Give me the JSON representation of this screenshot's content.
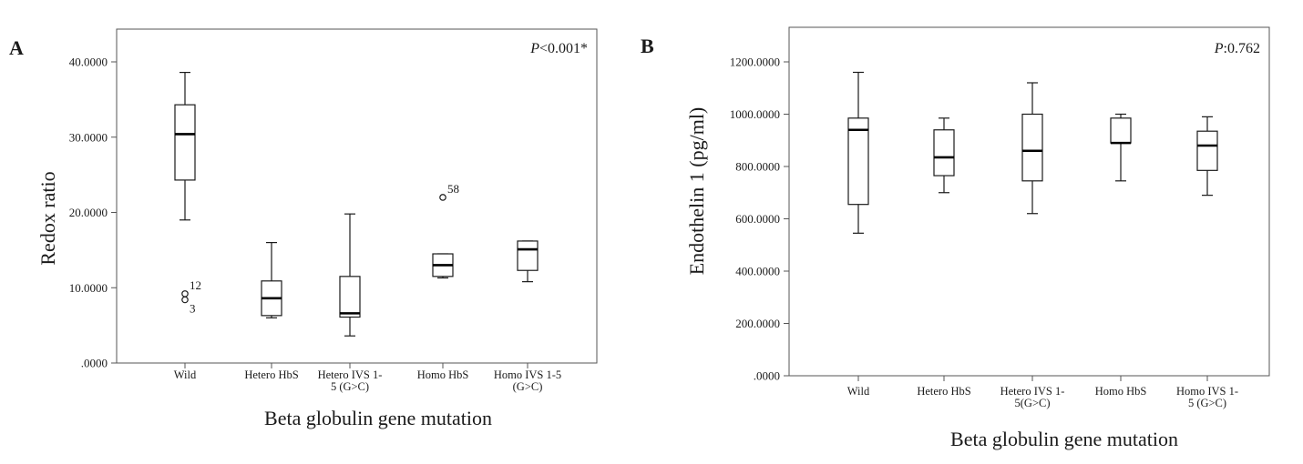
{
  "chart_data": [
    {
      "type": "boxplot",
      "panel_letter": "A",
      "p_value_prefix": "P",
      "p_value_text": "<0.001*",
      "xlabel": "Beta globulin gene mutation",
      "ylabel": "Redox ratio",
      "ylim": [
        0,
        40
      ],
      "yticks": [
        0,
        10,
        20,
        30,
        40
      ],
      "ytick_labels": [
        ".0000",
        "10.0000",
        "20.0000",
        "30.0000",
        "40.0000"
      ],
      "grid": false,
      "categories": [
        [
          "Wild"
        ],
        [
          "Hetero HbS"
        ],
        [
          "Hetero IVS 1-",
          "5 (G>C)"
        ],
        [
          "Homo HbS"
        ],
        [
          "Homo IVS 1-5",
          "(G>C)"
        ]
      ],
      "boxes": [
        {
          "min": 19.0,
          "q1": 24.3,
          "median": 30.4,
          "q3": 34.3,
          "max": 38.6
        },
        {
          "min": 6.0,
          "q1": 6.3,
          "median": 8.6,
          "q3": 10.9,
          "max": 16.0
        },
        {
          "min": 3.6,
          "q1": 6.1,
          "median": 6.6,
          "q3": 11.5,
          "max": 19.8
        },
        {
          "min": 11.3,
          "q1": 11.5,
          "median": 13.0,
          "q3": 14.5,
          "max": 14.5
        },
        {
          "min": 10.8,
          "q1": 12.3,
          "median": 15.1,
          "q3": 16.2,
          "max": 16.2
        }
      ],
      "outliers": [
        {
          "category": 0,
          "value": 9.2,
          "label": "12",
          "label_side": "upper-right"
        },
        {
          "category": 0,
          "value": 8.4,
          "label": "3",
          "label_side": "lower-right"
        },
        {
          "category": 3,
          "value": 22.0,
          "label": "58",
          "label_side": "upper-right"
        }
      ]
    },
    {
      "type": "boxplot",
      "panel_letter": "B",
      "p_value_prefix": "P",
      "p_value_text": ":0.762",
      "xlabel": "Beta globulin gene mutation",
      "ylabel": "Endothelin 1 (pg/ml)",
      "ylim": [
        0,
        1200
      ],
      "yticks": [
        0,
        200,
        400,
        600,
        800,
        1000,
        1200
      ],
      "ytick_labels": [
        ".0000",
        "200.0000",
        "400.0000",
        "600.0000",
        "800.0000",
        "1000.0000",
        "1200.0000"
      ],
      "grid": false,
      "categories": [
        [
          "Wild"
        ],
        [
          "Hetero HbS"
        ],
        [
          "Hetero IVS 1-",
          "5(G>C)"
        ],
        [
          "Homo HbS"
        ],
        [
          "Homo IVS 1-",
          "5 (G>C)"
        ]
      ],
      "boxes": [
        {
          "min": 545,
          "q1": 655,
          "median": 940,
          "q3": 985,
          "max": 1160
        },
        {
          "min": 700,
          "q1": 765,
          "median": 835,
          "q3": 940,
          "max": 985
        },
        {
          "min": 620,
          "q1": 745,
          "median": 860,
          "q3": 1000,
          "max": 1120
        },
        {
          "min": 745,
          "q1": 890,
          "median": 890,
          "q3": 985,
          "max": 1000
        },
        {
          "min": 690,
          "q1": 785,
          "median": 880,
          "q3": 935,
          "max": 990
        }
      ],
      "outliers": []
    }
  ]
}
